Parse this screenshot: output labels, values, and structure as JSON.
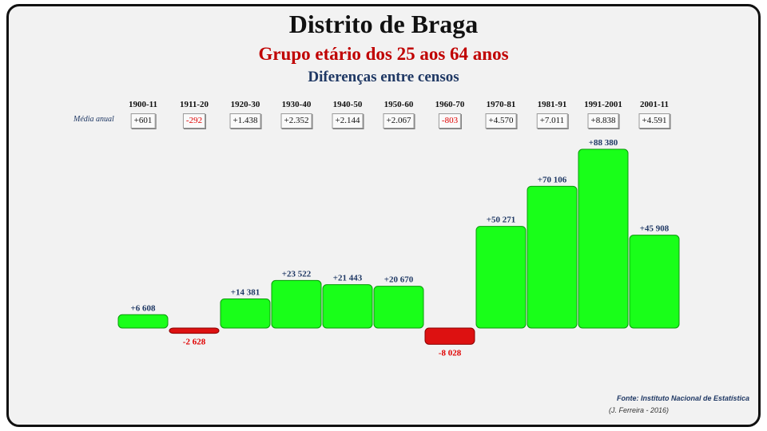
{
  "header": {
    "title": "Distrito de Braga",
    "subtitle": "Grupo etário dos 25 aos 64 anos",
    "subtitle2": "Diferenças entre censos"
  },
  "annual_label": "Média anual",
  "annual_means": [
    "+601",
    "-292",
    "+1.438",
    "+2.352",
    "+2.144",
    "+2.067",
    "-803",
    "+4.570",
    "+7.011",
    "+8.838",
    "+4.591"
  ],
  "chart_data": {
    "type": "bar",
    "categories": [
      "1900-11",
      "1911-20",
      "1920-30",
      "1930-40",
      "1940-50",
      "1950-60",
      "1960-70",
      "1970-81",
      "1981-91",
      "1991-2001",
      "2001-11"
    ],
    "values": [
      6608,
      -2628,
      14381,
      23522,
      21443,
      20670,
      -8028,
      50271,
      70106,
      88380,
      45908
    ],
    "value_labels": [
      "+6 608",
      "-2 628",
      "+14 381",
      "+23 522",
      "+21 443",
      "+20 670",
      "-8 028",
      "+50 271",
      "+70 106",
      "+88 380",
      "+45 908"
    ],
    "title": "Distrito de Braga",
    "subtitle": "Grupo etário dos 25 aos 64 anos",
    "ylim": [
      -8028,
      88380
    ],
    "grid": false,
    "colors": {
      "positive": "#19ff19",
      "positive_edge": "#0a9a0a",
      "negative": "#dd1111",
      "negative_edge": "#8a0000"
    }
  },
  "footer": {
    "source": "Fonte: Instituto Nacional de Estatística",
    "author": "(J. Ferreira - 2016)"
  }
}
